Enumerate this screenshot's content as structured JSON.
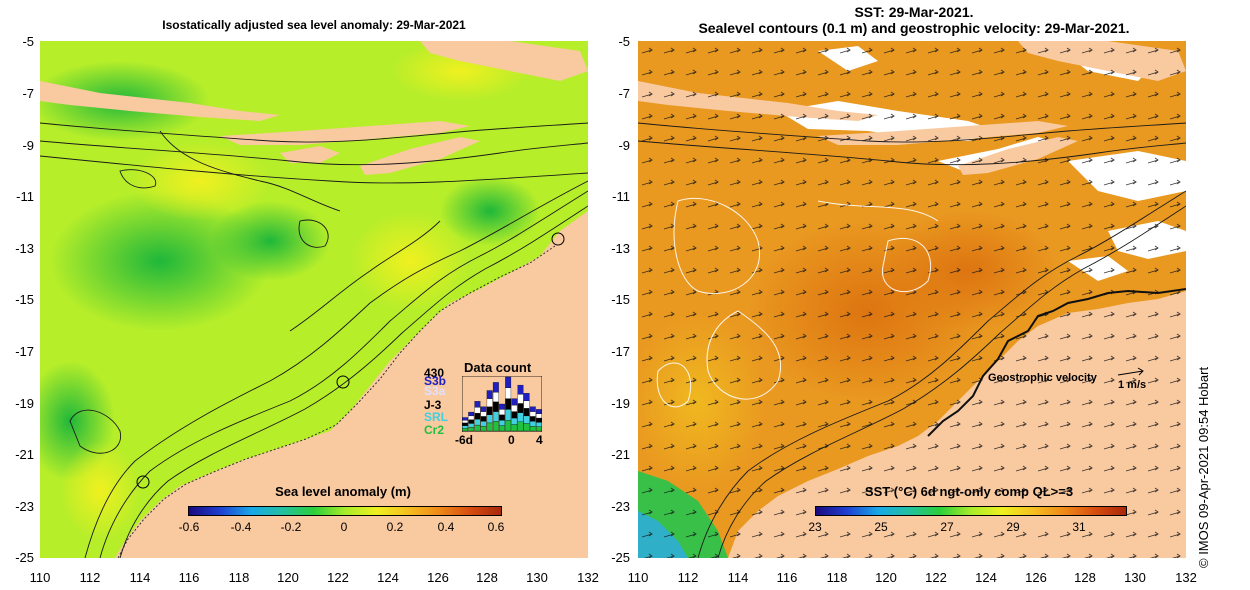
{
  "left_panel": {
    "title": "Isostatically adjusted sea level anomaly: 29-Mar-2021",
    "colorbar": {
      "title": "Sea level anomaly (m)",
      "ticks": [
        "-0.6",
        "-0.4",
        "-0.2",
        "0",
        "0.2",
        "0.4",
        "0.6"
      ]
    },
    "data_count": {
      "title": "Data count",
      "satellites": [
        "S3b",
        "S3a",
        "J-3",
        "SRL",
        "Cr2"
      ],
      "top_value": "430",
      "x_ticks": [
        "-6d",
        "0",
        "4"
      ],
      "colors": {
        "S3b": "#2020c0",
        "S3a": "#ffffff",
        "J-3": "#000000",
        "SRL": "#40d0e0",
        "Cr2": "#20c040"
      },
      "bar_heights": [
        0.25,
        0.35,
        0.55,
        0.45,
        0.75,
        0.9,
        0.5,
        1.0,
        0.6,
        0.85,
        0.7,
        0.45,
        0.4
      ]
    }
  },
  "right_panel": {
    "title_line1": "SST: 29-Mar-2021.",
    "title_line2": "Sealevel contours (0.1 m) and geostrophic velocity: 29-Mar-2021.",
    "colorbar": {
      "title": "SST (°C) 6d ngt-only comp QL>=3",
      "ticks": [
        "23",
        "25",
        "27",
        "29",
        "31"
      ]
    },
    "velocity_label": "Geostrophic velocity",
    "velocity_scale": "1 m/s"
  },
  "axes": {
    "y_ticks": [
      "-5",
      "-7",
      "-9",
      "-11",
      "-13",
      "-15",
      "-17",
      "-19",
      "-21",
      "-23",
      "-25"
    ],
    "x_ticks": [
      "110",
      "112",
      "114",
      "116",
      "118",
      "120",
      "122",
      "124",
      "126",
      "128",
      "130",
      "132"
    ]
  },
  "credit": "© IMOS 09-Apr-2021 09:54 Hobart",
  "colors": {
    "land": "#f9c9a0",
    "sla_low": "#2ccf3a",
    "sla_mid": "#a8ec2a",
    "sla_high": "#e6f510",
    "sst_warm": "#ea9a20",
    "sst_hot": "#de7d12",
    "sst_cool": "#30c040"
  }
}
